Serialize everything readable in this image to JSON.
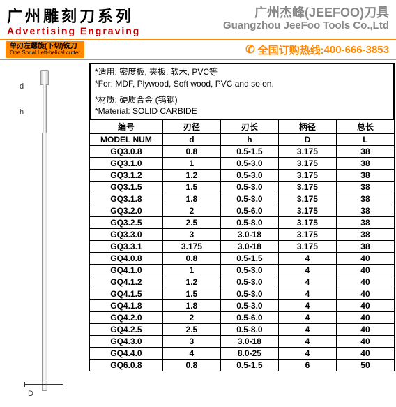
{
  "header": {
    "title_cn": "广州雕刻刀系列",
    "title_en": "Advertising Engraving",
    "company_cn": "广州杰峰(JEEFOO)刀具",
    "company_en": "Guangzhou JeeFoo Tools Co.,Ltd"
  },
  "strip": {
    "tag_cn": "单刃左螺旋(下切)铣刀",
    "tag_en": "One Sprial Left-helical cutter",
    "hotline_label": "全国订购热线:",
    "hotline_num": "400-666-3853"
  },
  "notes": {
    "l1": "*适用: 密度板, 夹板, 软木, PVC等",
    "l2": "*For: MDF, Plywood, Soft wood, PVC and so on.",
    "l3": "*材质: 硬质合金 (钨钢)",
    "l4": "*Material: SOLID CARBIDE"
  },
  "diagram": {
    "d": "d",
    "h": "h",
    "D": "D"
  },
  "table": {
    "head_cn": [
      "编号",
      "刃径",
      "刃长",
      "柄径",
      "总长"
    ],
    "head_en": [
      "MODEL NUM",
      "d",
      "h",
      "D",
      "L"
    ],
    "rows": [
      [
        "GQ3.0.8",
        "0.8",
        "0.5-1.5",
        "3.175",
        "38"
      ],
      [
        "GQ3.1.0",
        "1",
        "0.5-3.0",
        "3.175",
        "38"
      ],
      [
        "GQ3.1.2",
        "1.2",
        "0.5-3.0",
        "3.175",
        "38"
      ],
      [
        "GQ3.1.5",
        "1.5",
        "0.5-3.0",
        "3.175",
        "38"
      ],
      [
        "GQ3.1.8",
        "1.8",
        "0.5-3.0",
        "3.175",
        "38"
      ],
      [
        "GQ3.2.0",
        "2",
        "0.5-6.0",
        "3.175",
        "38"
      ],
      [
        "GQ3.2.5",
        "2.5",
        "0.5-8.0",
        "3.175",
        "38"
      ],
      [
        "GQ3.3.0",
        "3",
        "3.0-18",
        "3.175",
        "38"
      ],
      [
        "GQ3.3.1",
        "3.175",
        "3.0-18",
        "3.175",
        "38"
      ],
      [
        "GQ4.0.8",
        "0.8",
        "0.5-1.5",
        "4",
        "40"
      ],
      [
        "GQ4.1.0",
        "1",
        "0.5-3.0",
        "4",
        "40"
      ],
      [
        "GQ4.1.2",
        "1.2",
        "0.5-3.0",
        "4",
        "40"
      ],
      [
        "GQ4.1.5",
        "1.5",
        "0.5-3.0",
        "4",
        "40"
      ],
      [
        "GQ4.1.8",
        "1.8",
        "0.5-3.0",
        "4",
        "40"
      ],
      [
        "GQ4.2.0",
        "2",
        "0.5-6.0",
        "4",
        "40"
      ],
      [
        "GQ4.2.5",
        "2.5",
        "0.5-8.0",
        "4",
        "40"
      ],
      [
        "GQ4.3.0",
        "3",
        "3.0-18",
        "4",
        "40"
      ],
      [
        "GQ4.4.0",
        "4",
        "8.0-25",
        "4",
        "40"
      ],
      [
        "GQ6.0.8",
        "0.8",
        "0.5-1.5",
        "6",
        "50"
      ]
    ]
  }
}
